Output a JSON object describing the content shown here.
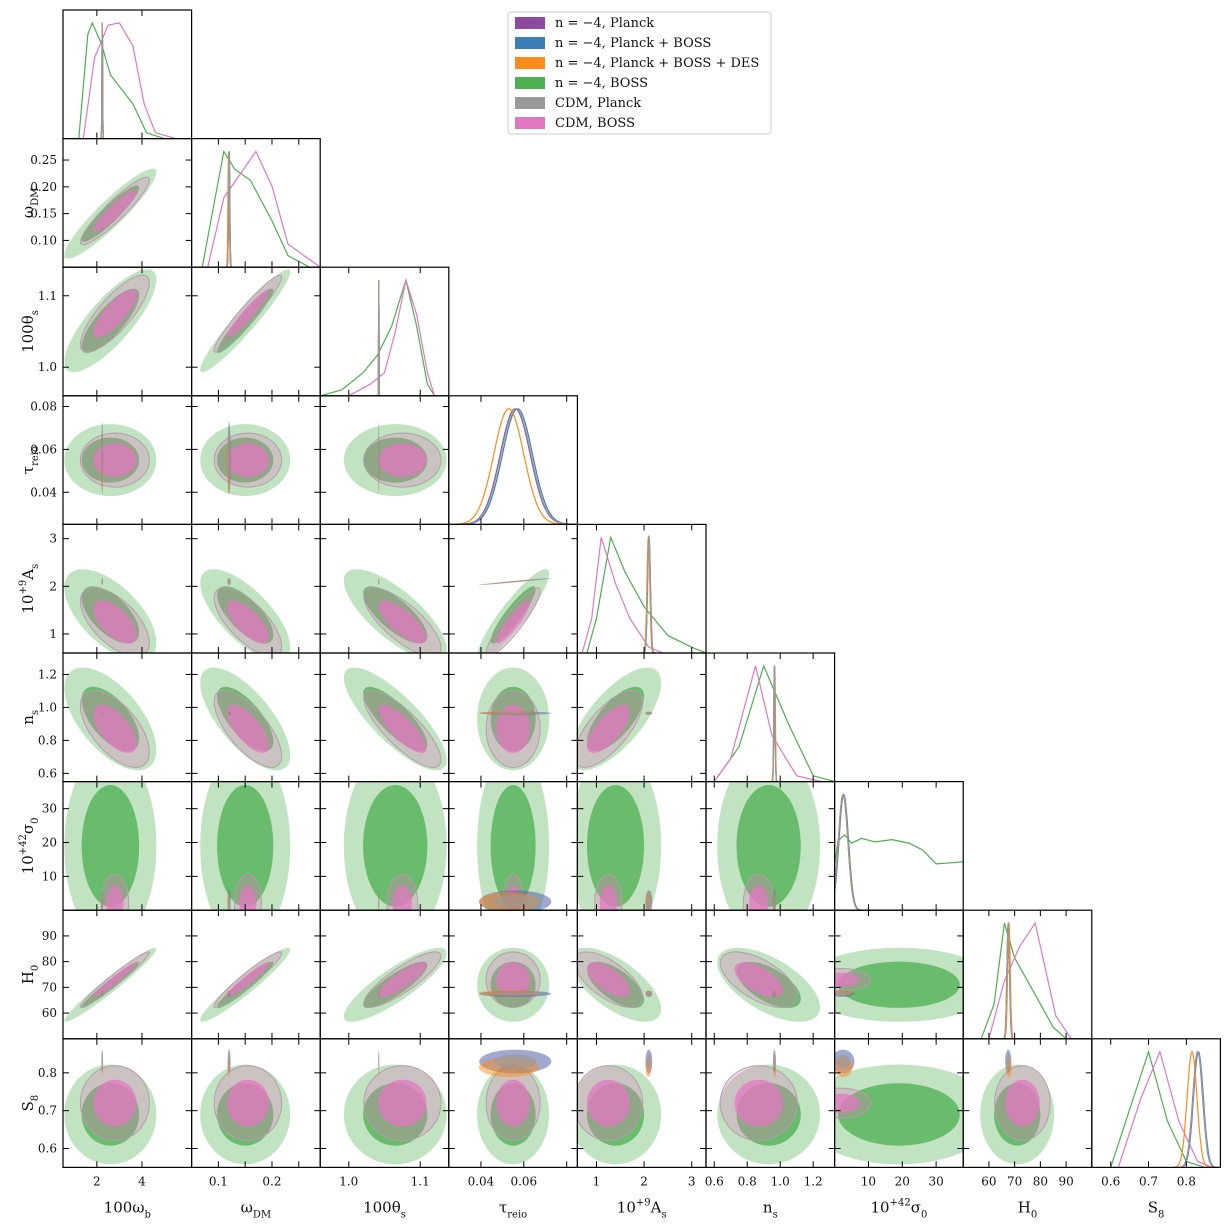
{
  "chart_data": {
    "type": "corner",
    "title": "",
    "parameters": [
      {
        "key": "wb",
        "label": "100ω",
        "sub": "b",
        "sup": "",
        "prefix": "",
        "ticks": [
          2,
          4
        ],
        "tick_labels": [
          "2",
          "4"
        ],
        "range": [
          0.5,
          6.2
        ]
      },
      {
        "key": "wdm",
        "label": "ω",
        "sub": "DM",
        "sup": "",
        "prefix": "",
        "ticks": [
          0.1,
          0.15,
          0.2,
          0.25
        ],
        "tick_labels": [
          "0.10",
          "0.15",
          "0.20",
          "0.25"
        ],
        "x_ticks": [
          0.1,
          0.2
        ],
        "x_tick_labels": [
          "0.1",
          "0.2"
        ],
        "range": [
          0.05,
          0.29
        ]
      },
      {
        "key": "theta",
        "label": "100θ",
        "sub": "s",
        "sup": "",
        "prefix": "",
        "ticks": [
          1.0,
          1.1
        ],
        "tick_labels": [
          "1.0",
          "1.1"
        ],
        "range": [
          0.96,
          1.14
        ]
      },
      {
        "key": "tau",
        "label": "τ",
        "sub": "reio",
        "sup": "",
        "prefix": "",
        "ticks": [
          0.04,
          0.06,
          0.08
        ],
        "tick_labels": [
          "0.04",
          "0.06",
          "0.08"
        ],
        "x_ticks": [
          0.04,
          0.06
        ],
        "x_tick_labels": [
          "0.04",
          "0.06"
        ],
        "range": [
          0.025,
          0.085
        ]
      },
      {
        "key": "As",
        "label": "A",
        "sub": "s",
        "sup": "+9",
        "prefix": "10",
        "ticks": [
          1,
          2,
          3
        ],
        "tick_labels": [
          "1",
          "2",
          "3"
        ],
        "range": [
          0.6,
          3.3
        ]
      },
      {
        "key": "ns",
        "label": "n",
        "sub": "s",
        "sup": "",
        "prefix": "",
        "ticks": [
          0.6,
          0.8,
          1.0,
          1.2
        ],
        "tick_labels": [
          "0.6",
          "0.8",
          "1.0",
          "1.2"
        ],
        "range": [
          0.55,
          1.33
        ]
      },
      {
        "key": "sigma",
        "label": "σ",
        "sub": "0",
        "sup": "+42",
        "prefix": "10",
        "ticks": [
          10,
          20,
          30
        ],
        "tick_labels": [
          "10",
          "20",
          "30"
        ],
        "range": [
          0,
          38
        ]
      },
      {
        "key": "H0",
        "label": "H",
        "sub": "0",
        "sup": "",
        "prefix": "",
        "ticks": [
          60,
          70,
          80,
          90
        ],
        "tick_labels": [
          "60",
          "70",
          "80",
          "90"
        ],
        "range": [
          50,
          100
        ]
      },
      {
        "key": "S8",
        "label": "S",
        "sub": "8",
        "sup": "",
        "prefix": "",
        "ticks": [
          0.6,
          0.7,
          0.8
        ],
        "tick_labels": [
          "0.6",
          "0.7",
          "0.8"
        ],
        "range": [
          0.55,
          0.89
        ]
      }
    ],
    "series": [
      {
        "name": "n = −4, Planck",
        "color": "#8e4a9e"
      },
      {
        "name": "n = −4, Planck + BOSS",
        "color": "#3b7fb8"
      },
      {
        "name": "n = −4, Planck + BOSS + DES",
        "color": "#ff8c1a"
      },
      {
        "name": "n = −4, BOSS",
        "color": "#4caf50"
      },
      {
        "name": "CDM, Planck",
        "color": "#999999"
      },
      {
        "name": "CDM, BOSS",
        "color": "#e377c2"
      }
    ],
    "means": {
      "planck": {
        "wb": 2.24,
        "wdm": 0.12,
        "theta": 1.042,
        "tau": 0.056,
        "As": 2.1,
        "ns": 0.965,
        "sigma": 2.5,
        "H0": 67.5,
        "S8": 0.83
      },
      "des": {
        "wb": 2.24,
        "wdm": 0.119,
        "theta": 1.042,
        "tau": 0.053,
        "As": 2.09,
        "ns": 0.967,
        "sigma": 2.5,
        "H0": 67.8,
        "S8": 0.815
      },
      "boss_n4": {
        "wb": 2.6,
        "wdm": 0.15,
        "theta": 1.065,
        "tau": 0.055,
        "As": 1.4,
        "ns": 0.93,
        "sigma": 19,
        "H0": 71,
        "S8": 0.69
      },
      "cdm_boss": {
        "wb": 2.8,
        "wdm": 0.155,
        "theta": 1.075,
        "tau": 0.055,
        "As": 1.25,
        "ns": 0.87,
        "sigma": 2,
        "H0": 73,
        "S8": 0.72
      }
    },
    "sigmas": {
      "planck": {
        "wb": 0.015,
        "wdm": 0.0012,
        "theta": 0.0003,
        "tau": 0.007,
        "As": 0.03,
        "ns": 0.004,
        "sigma": 1.4,
        "H0": 0.5,
        "S8": 0.013
      },
      "boss": {
        "wb": 0.85,
        "wdm": 0.035,
        "theta": 0.03,
        "tau": 0.007,
        "As": 0.4,
        "ns": 0.13,
        "sigma": 12,
        "H0": 6,
        "S8": 0.055
      }
    },
    "correlations_boss": {
      "wb|wdm": 0.92,
      "wb|theta": 0.8,
      "wb|As": -0.6,
      "wb|ns": -0.6,
      "wb|H0": 0.97,
      "wdm|theta": 0.95,
      "wdm|As": -0.7,
      "wdm|ns": -0.7,
      "wdm|H0": 0.95,
      "theta|As": -0.75,
      "theta|ns": -0.8,
      "theta|H0": 0.85,
      "As|ns": 0.7,
      "As|H0": -0.65,
      "ns|H0": -0.6,
      "tau|As": 0.9
    },
    "correlations_planck": {
      "tau|As": 0.98
    },
    "one_d_curves": {
      "wb": {
        "boss": [
          [
            1.2,
            0
          ],
          [
            1.6,
            0.9
          ],
          [
            1.8,
            1.0
          ],
          [
            2.2,
            0.82
          ],
          [
            2.6,
            0.55
          ],
          [
            3.0,
            0.45
          ],
          [
            3.6,
            0.3
          ],
          [
            4.2,
            0.05
          ],
          [
            5.0,
            0
          ]
        ],
        "cdm_boss": [
          [
            1.4,
            0
          ],
          [
            1.9,
            0.7
          ],
          [
            2.5,
            0.98
          ],
          [
            3.0,
            1.0
          ],
          [
            3.6,
            0.8
          ],
          [
            4.1,
            0.3
          ],
          [
            4.6,
            0.05
          ],
          [
            5.5,
            0
          ]
        ]
      },
      "wdm": {
        "boss": [
          [
            0.07,
            0
          ],
          [
            0.09,
            0.5
          ],
          [
            0.11,
            1.0
          ],
          [
            0.13,
            0.85
          ],
          [
            0.16,
            0.75
          ],
          [
            0.2,
            0.4
          ],
          [
            0.23,
            0.1
          ],
          [
            0.27,
            0
          ]
        ],
        "cdm_boss": [
          [
            0.08,
            0
          ],
          [
            0.11,
            0.6
          ],
          [
            0.14,
            0.8
          ],
          [
            0.17,
            1.0
          ],
          [
            0.2,
            0.7
          ],
          [
            0.23,
            0.2
          ],
          [
            0.26,
            0.1
          ],
          [
            0.29,
            0
          ]
        ]
      },
      "theta": {
        "boss": [
          [
            0.96,
            0
          ],
          [
            0.99,
            0.05
          ],
          [
            1.02,
            0.2
          ],
          [
            1.04,
            0.35
          ],
          [
            1.06,
            0.6
          ],
          [
            1.08,
            1.0
          ],
          [
            1.095,
            0.6
          ],
          [
            1.11,
            0.1
          ],
          [
            1.12,
            0
          ]
        ],
        "cdm_boss": [
          [
            1.0,
            0
          ],
          [
            1.03,
            0.1
          ],
          [
            1.05,
            0.2
          ],
          [
            1.065,
            0.55
          ],
          [
            1.08,
            1.0
          ],
          [
            1.095,
            0.7
          ],
          [
            1.11,
            0.2
          ],
          [
            1.12,
            0
          ]
        ]
      },
      "As": {
        "boss": [
          [
            0.8,
            0
          ],
          [
            1.0,
            0.3
          ],
          [
            1.3,
            1.0
          ],
          [
            1.6,
            0.7
          ],
          [
            2.0,
            0.4
          ],
          [
            2.5,
            0.15
          ],
          [
            3.0,
            0.05
          ],
          [
            3.3,
            0
          ]
        ],
        "cdm_boss": [
          [
            0.7,
            0
          ],
          [
            0.9,
            0.3
          ],
          [
            1.1,
            1.0
          ],
          [
            1.4,
            0.6
          ],
          [
            1.7,
            0.3
          ],
          [
            2.1,
            0.05
          ],
          [
            2.4,
            0
          ]
        ]
      },
      "ns": {
        "boss": [
          [
            0.6,
            0
          ],
          [
            0.75,
            0.3
          ],
          [
            0.9,
            1.0
          ],
          [
            1.05,
            0.5
          ],
          [
            1.2,
            0.05
          ],
          [
            1.33,
            0
          ]
        ],
        "cdm_boss": [
          [
            0.6,
            0
          ],
          [
            0.7,
            0.2
          ],
          [
            0.85,
            1.0
          ],
          [
            0.95,
            0.4
          ],
          [
            1.1,
            0.05
          ],
          [
            1.25,
            0
          ]
        ]
      },
      "sigma": {
        "boss": [
          [
            0.1,
            0.4
          ],
          [
            1,
            0.6
          ],
          [
            3,
            0.65
          ],
          [
            5,
            0.58
          ],
          [
            8,
            0.62
          ],
          [
            12,
            0.59
          ],
          [
            17,
            0.61
          ],
          [
            22,
            0.58
          ],
          [
            26,
            0.52
          ],
          [
            30,
            0.4
          ],
          [
            35,
            0.41
          ],
          [
            38,
            0.42
          ]
        ]
      },
      "H0": {
        "boss": [
          [
            57,
            0
          ],
          [
            62,
            0.3
          ],
          [
            66,
            1.0
          ],
          [
            70,
            0.7
          ],
          [
            75,
            0.5
          ],
          [
            80,
            0.3
          ],
          [
            85,
            0.1
          ],
          [
            90,
            0
          ]
        ],
        "cdm_boss": [
          [
            60,
            0
          ],
          [
            66,
            0.5
          ],
          [
            72,
            0.8
          ],
          [
            78,
            1.0
          ],
          [
            82,
            0.6
          ],
          [
            86,
            0.2
          ],
          [
            92,
            0
          ]
        ]
      },
      "S8": {
        "boss": [
          [
            0.6,
            0
          ],
          [
            0.66,
            0.6
          ],
          [
            0.7,
            1.0
          ],
          [
            0.75,
            0.4
          ],
          [
            0.8,
            0.05
          ],
          [
            0.85,
            0
          ]
        ],
        "cdm_boss": [
          [
            0.62,
            0
          ],
          [
            0.68,
            0.6
          ],
          [
            0.73,
            1.0
          ],
          [
            0.78,
            0.4
          ],
          [
            0.83,
            0.05
          ],
          [
            0.87,
            0
          ]
        ]
      }
    },
    "legend_position": "top-right",
    "grid": false
  }
}
